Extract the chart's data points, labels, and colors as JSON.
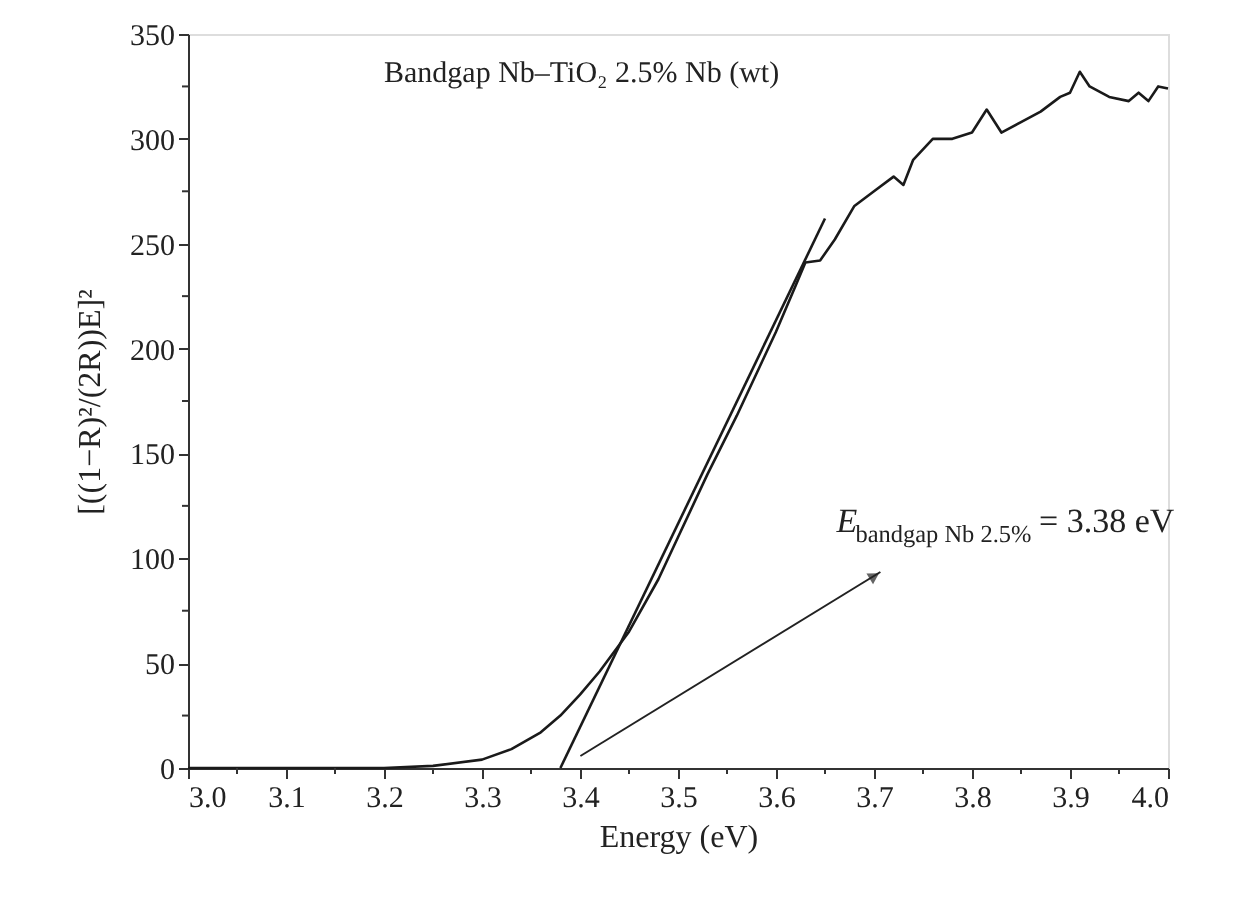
{
  "chart_data": {
    "type": "line",
    "xlabel": "Energy (eV)",
    "ylabel": "[((1−R)²/(2R))E]²",
    "annotations": [
      "Bandgap Nb–TiO₂ 2.5% Nb (wt)",
      "E$_{bandgap Nb 2.5%}$ = 3.38 eV"
    ],
    "series": [
      {
        "color": "#1a1a1a",
        "x": [
          3.0,
          3.1,
          3.2,
          3.25,
          3.3,
          3.33,
          3.36,
          3.38,
          3.4,
          3.42,
          3.45,
          3.48,
          3.5,
          3.53,
          3.56,
          3.6,
          3.62,
          3.63,
          3.645,
          3.66,
          3.68,
          3.7,
          3.72,
          3.73,
          3.74,
          3.76,
          3.78,
          3.8,
          3.815,
          3.83,
          3.85,
          3.87,
          3.89,
          3.9,
          3.91,
          3.92,
          3.94,
          3.96,
          3.97,
          3.98,
          3.99,
          4.0
        ],
        "values": [
          0,
          0,
          0,
          1,
          4,
          9,
          17,
          25,
          35,
          46,
          65,
          90,
          110,
          140,
          168,
          208,
          230,
          241,
          242,
          252,
          268,
          275,
          282,
          278,
          290,
          300,
          300,
          303,
          314,
          303,
          308,
          313,
          320,
          322,
          332,
          325,
          320,
          318,
          322,
          318,
          325,
          324
        ]
      },
      {
        "color": "#1a1a1a",
        "x": [
          3.38,
          3.65
        ],
        "values": [
          0,
          262
        ]
      }
    ],
    "xlim": [
      3.0,
      4.0
    ],
    "ylim": [
      0,
      350
    ],
    "xticks": [
      {
        "value": 3.0,
        "label": "3.0"
      },
      {
        "value": 3.05,
        "label": null
      },
      3.1,
      {
        "value": 3.15,
        "label": null
      },
      3.2,
      {
        "value": 3.25,
        "label": null
      },
      3.3,
      {
        "value": 3.35,
        "label": null
      },
      3.4,
      {
        "value": 3.45,
        "label": null
      },
      3.5,
      {
        "value": 3.55,
        "label": null
      },
      3.6,
      {
        "value": 3.65,
        "label": null
      },
      3.7,
      {
        "value": 3.75,
        "label": null
      },
      3.8,
      {
        "value": 3.85,
        "label": null
      },
      3.9,
      {
        "value": 3.95,
        "label": null
      },
      {
        "value": 4.0,
        "label": "4.0"
      }
    ],
    "yticks": [
      0,
      {
        "value": 25,
        "label": null
      },
      50,
      {
        "value": 75,
        "label": null
      },
      100,
      {
        "value": 125,
        "label": null
      },
      150,
      {
        "value": 175,
        "label": null
      },
      200,
      {
        "value": 225,
        "label": null
      },
      250,
      {
        "value": 275,
        "label": null
      },
      300,
      {
        "value": 325,
        "label": null
      },
      350
    ],
    "grid": false,
    "marker": "none",
    "line_style": "solid"
  }
}
